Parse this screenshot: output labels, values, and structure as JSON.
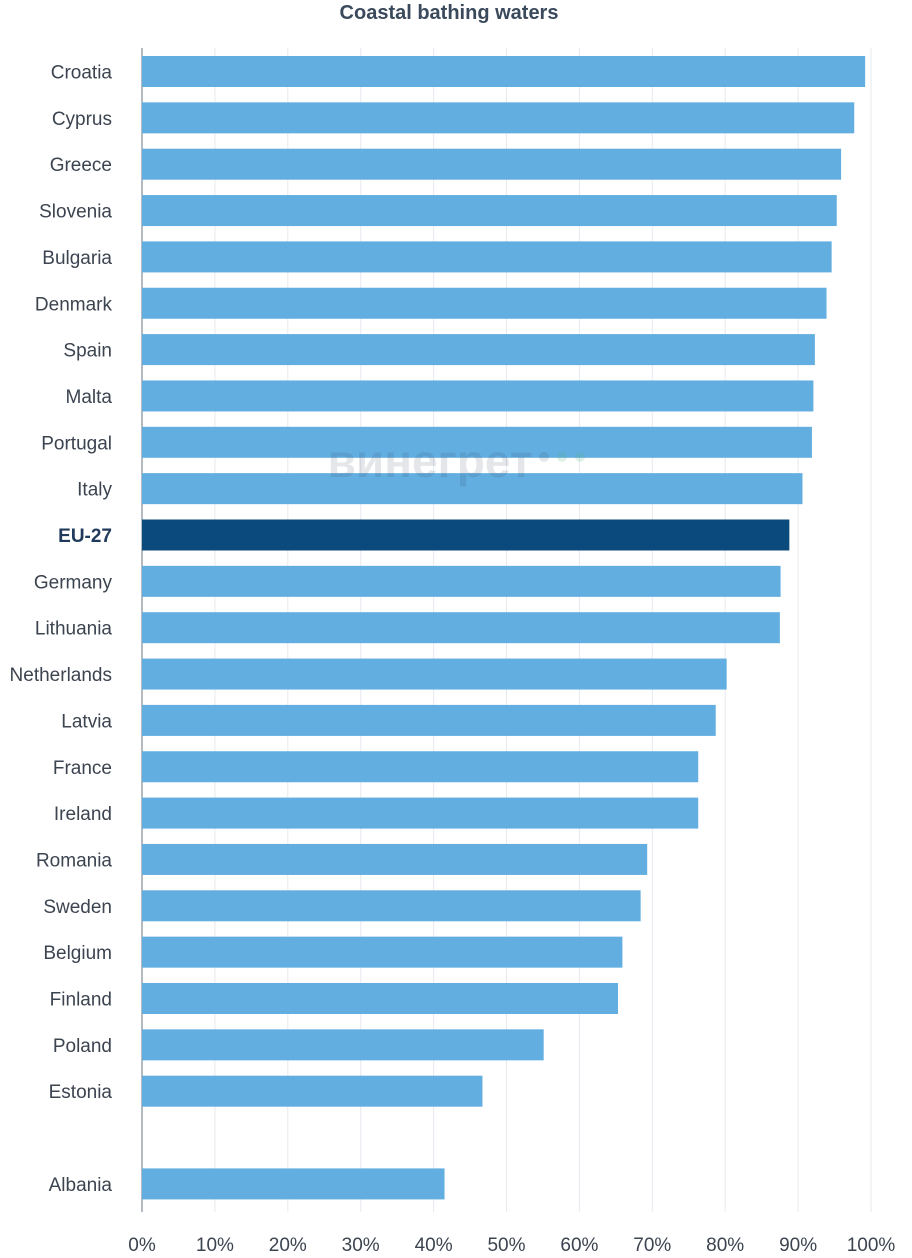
{
  "chart_data": {
    "type": "bar",
    "orientation": "horizontal",
    "title": "Coastal bathing waters",
    "categories": [
      "Croatia",
      "Cyprus",
      "Greece",
      "Slovenia",
      "Bulgaria",
      "Denmark",
      "Spain",
      "Malta",
      "Portugal",
      "Italy",
      "EU-27",
      "Germany",
      "Lithuania",
      "Netherlands",
      "Latvia",
      "France",
      "Ireland",
      "Romania",
      "Sweden",
      "Belgium",
      "Finland",
      "Poland",
      "Estonia",
      "",
      "Albania"
    ],
    "values": [
      99.2,
      97.7,
      95.9,
      95.3,
      94.6,
      93.9,
      92.3,
      92.1,
      91.9,
      90.6,
      88.8,
      87.6,
      87.5,
      80.2,
      78.7,
      76.3,
      76.3,
      69.3,
      68.4,
      65.9,
      65.3,
      55.1,
      46.7,
      null,
      41.5
    ],
    "highlight": "EU-27",
    "xlim": [
      0,
      100
    ],
    "x_ticks": [
      "0%",
      "10%",
      "20%",
      "30%",
      "40%",
      "50%",
      "60%",
      "70%",
      "80%",
      "90%",
      "100%"
    ],
    "grid": true,
    "colors": {
      "bar": "#62aee0",
      "highlight": "#0b4a7c",
      "grid": "#e6e9ee",
      "axis": "#9aa3ad"
    }
  },
  "watermark": {
    "text": "винегрет"
  }
}
